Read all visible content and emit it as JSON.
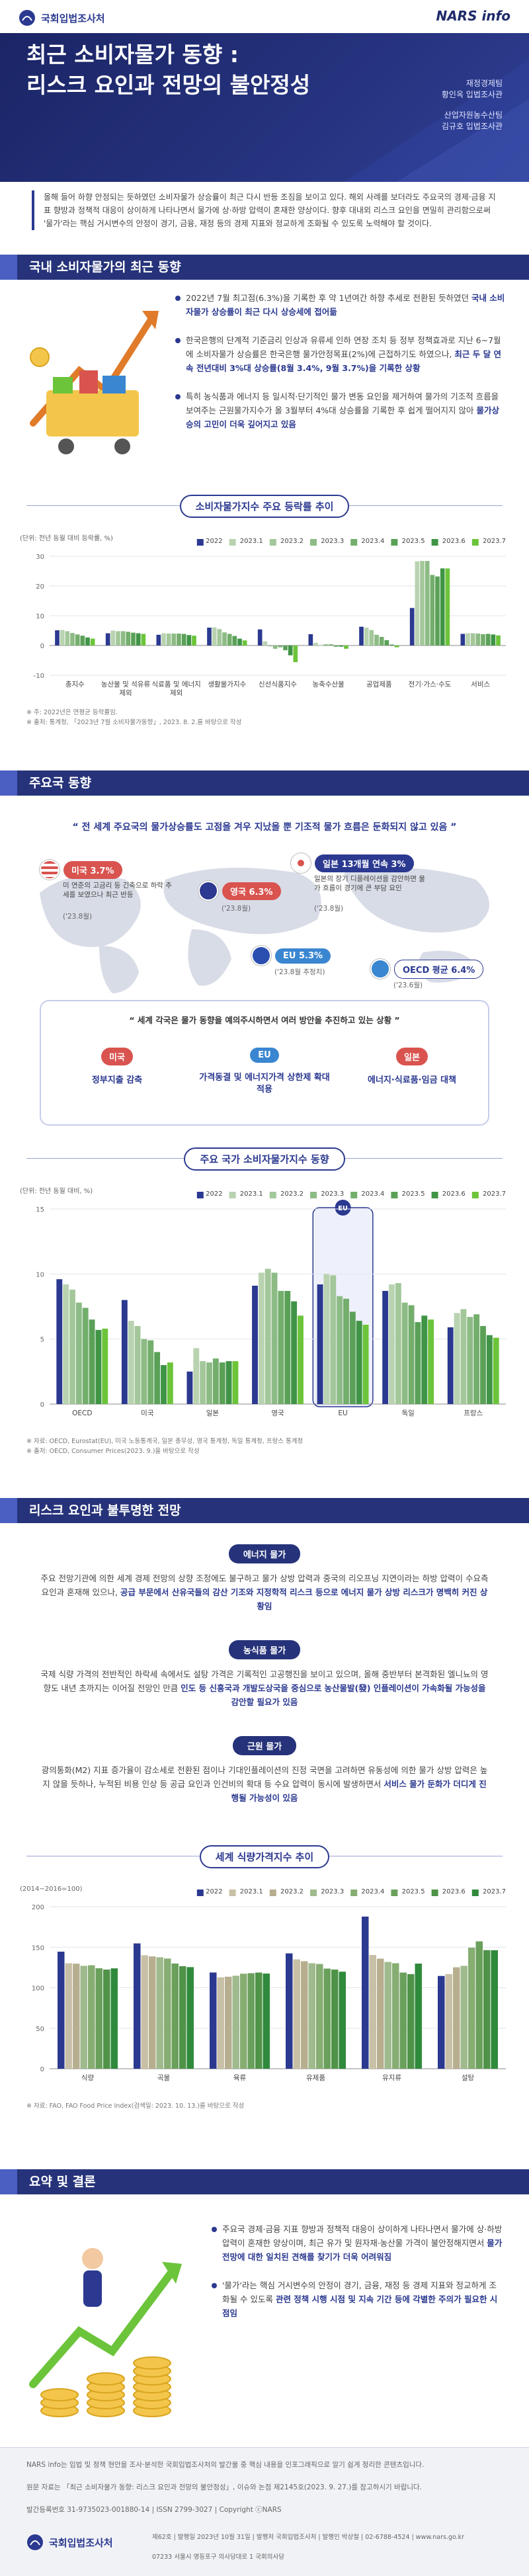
{
  "header": {
    "logo": "국회입법조사처",
    "brand": "NARS info",
    "title": [
      "최근 소비자물가 동향 :",
      "리스크 요인과 전망의 불안정성"
    ],
    "authors": [
      {
        "team": "재정경제팀",
        "name": "황인옥 입법조사관"
      },
      {
        "team": "산업자원농수산팀",
        "name": "김규호 입법조사관"
      }
    ]
  },
  "intro": "올해 들어 하향 안정되는 듯하였던 소비자물가 상승률이 최근 다시 반등 조짐을 보이고 있다. 해외 사례를 보더라도 주요국의 경제·금융 지표 향방과 정책적 대응이 상이하게 나타나면서 물가에 상·하방 압력이 혼재한 양상이다. 향후 대내외 리스크 요인을 면밀히 관리함으로써 '물가'라는 핵심 거시변수의 안정이 경기, 금융, 재정 등의 경제 지표와 정교하게 조화될 수 있도록 노력해야 할 것이다.",
  "section1": {
    "title": "국내 소비자물가의 최근 동향",
    "bullets": [
      {
        "text": "2022년 7월 최고점(6.3%)을 기록한 후 약 1년여간 하향 추세로 전환된 듯하였던",
        "highlight": "국내 소비자물가 상승률이 최근 다시 상승세에 접어듦"
      },
      {
        "text": "한국은행의 단계적 기준금리 인상과 유류세 인하 연장 조치 등 정부 정책효과로 지난 6~7월에 소비자물가 상승률은 한국은행 물가안정목표(2%)에 근접하기도 하였으나,",
        "highlight": "최근 두 달 연속 전년대비 3%대 상승률(8월 3.4%, 9월 3.7%)을 기록한 상황"
      },
      {
        "text": "특히 농식품과 에너지 등 일시적·단기적인 물가 변동 요인을 제거하여 물가의 기조적 흐름을 보여주는 근원물가지수가 올 3월부터 4%대 상승률을 기록한 후 쉽게 떨어지지 않아",
        "highlight": "물가상승의 고민이 더욱 깊어지고 있음"
      }
    ]
  },
  "section2": {
    "title": "주요국 동향",
    "quote": "전 세계 주요국의 물가상승률도 고점을 겨우 지났을 뿐 기조적 물가 흐름은 둔화되지 않고 있음",
    "map": [
      {
        "label": "영국 6.3%",
        "date": "('23.8월)"
      },
      {
        "label": "일본 13개월 연속 3%",
        "desc": "일본의 장기 디플레이션을 감안하면 물가 흐름이 경기에 큰 부담 요인",
        "date": "('23.8월)"
      },
      {
        "label": "미국 3.7%",
        "desc": "미 연준의 고금리 등 긴축으로 하락 추세를 보였으나 최근 반등",
        "date": "('23.8월)"
      },
      {
        "label": "EU 5.3%",
        "date": "('23.8월 추정치)"
      },
      {
        "label": "OECD 평균 6.4%",
        "date": "('23.6월)"
      }
    ],
    "measures": {
      "heading": "세계 각국은 물가 동향을 예의주시하면서 여러 방안을 추진하고 있는 상황",
      "items": [
        {
          "country": "미국",
          "action": "정부지출 감축"
        },
        {
          "country": "EU",
          "action": "가격동결 및 에너지가격 상한제 확대 적용"
        },
        {
          "country": "일본",
          "action": "에너지·식료품·임금 대책"
        }
      ]
    }
  },
  "section3": {
    "title": "리스크 요인과 불투명한 전망",
    "items": [
      {
        "label": "에너지 물가",
        "text": "주요 전망기관에 의한 세계 경제 전망의 상향 조정에도 불구하고 물가 상방 압력과 중국의 리오프닝 지연이라는 하방 압력이 수요측 요인과 혼재해 있으나,",
        "highlight": "공급 부문에서 산유국들의 감산 기조와 지정학적 리스크 등으로 에너지 물가 상방 리스크가 명백히 커진 상황임"
      },
      {
        "label": "농식품 물가",
        "text": "국제 식량 가격의 전반적인 하락세 속에서도 설탕 가격은 기록적인 고공행진을 보이고 있으며, 올해 중반부터 본격화된 엘니뇨의 영향도 내년 초까지는 이어질 전망인 만큼",
        "highlight": "인도 등 신흥국과 개발도상국을 중심으로 농산물발(發) 인플레이션이 가속화될 가능성을 감안할 필요가 있음"
      },
      {
        "label": "근원 물가",
        "text": "광의통화(M2) 지표 증가율이 감소세로 전환된 점이나 기대인플레이션의 진정 국면을 고려하면 유동성에 의한 물가 상방 압력은 높지 않을 듯하나, 누적된 비용 인상 등 공급 요인과 인건비의 확대 등 수요 압력이 동시에 발생하면서",
        "highlight": "서비스 물가 둔화가 더디게 진행될 가능성이 있음"
      }
    ]
  },
  "section4": {
    "title": "요약 및 결론",
    "bullets": [
      {
        "text": "주요국 경제·금융 지표 향방과 정책적 대응이 상이하게 나타나면서 물가에 상·하방 압력이 혼재한 양상이며, 최근 유가 및 원자재·농산물 가격이 불안정해지면서",
        "highlight": "물가 전망에 대한 일치된 견해를 찾기가 더욱 어려워짐"
      },
      {
        "text": "'물가'라는 핵심 거시변수의 안정이 경기, 금융, 재정 등 경제 지표와 정교하게 조화될 수 있도록",
        "highlight": "관련 정책 시행 시점 및 지속 기간 등에 각별한 주의가 필요한 시점임"
      }
    ]
  },
  "footer": {
    "disclaimer": "NARS info는 입법 및 정책 현안을 조사·분석한 국회입법조사처의 발간물 중 핵심 내용을 인포그래픽으로 알기 쉽게 정리한 콘텐츠입니다.",
    "source": "원문 자료는 「최근 소비자물가 동향: 리스크 요인과 전망의 불안정성」, 이슈와 논점 제2145호(2023. 9. 27.)를 참고하시기 바랍니다.",
    "registration": "발간등록번호 31-9735023-001880-14 | ISSN 2799-3027 | Copyright ⓒNARS",
    "logo": "국회입법조사처",
    "issue": "제62호 | 발행일 2023년 10월 31일 | 발행처 국회입법조사처 | 발행인 박상철 | 02-6788-4524 | www.nars.go.kr",
    "address": "07233 서울시 영등포구 의사당대로 1 국회의사당"
  },
  "chart_data": [
    {
      "type": "bar",
      "title": "소비자물가지수 주요 등락률 추이",
      "y_label": "(단위: 전년 동월 대비 등락률, %)",
      "categories": [
        "총지수",
        "농산물 및 석유류제외",
        "식료품 및 에너지제외",
        "생활물가지수",
        "신선식품지수",
        "농축수산물",
        "공업제품",
        "전기·가스·수도",
        "서비스"
      ],
      "series": [
        {
          "name": "2022",
          "color": "#2b3990",
          "values": [
            5.1,
            4.1,
            3.6,
            6.0,
            5.4,
            3.8,
            6.3,
            12.6,
            3.9
          ]
        },
        {
          "name": "2023.1",
          "color": "#b9d3b0",
          "values": [
            5.2,
            5.0,
            4.1,
            6.1,
            1.4,
            0.9,
            6.0,
            28.3,
            4.1
          ]
        },
        {
          "name": "2023.2",
          "color": "#a3c79a",
          "values": [
            4.8,
            4.8,
            4.0,
            5.5,
            -0.3,
            -0.1,
            5.2,
            28.4,
            4.1
          ]
        },
        {
          "name": "2023.3",
          "color": "#8dbb85",
          "values": [
            4.2,
            4.8,
            4.0,
            4.4,
            -1.1,
            0.4,
            3.6,
            28.4,
            4.0
          ]
        },
        {
          "name": "2023.4",
          "color": "#73ae6c",
          "values": [
            3.7,
            4.6,
            4.0,
            3.9,
            -0.6,
            0.4,
            2.9,
            23.7,
            3.8
          ]
        },
        {
          "name": "2023.5",
          "color": "#5aa157",
          "values": [
            3.3,
            4.3,
            3.9,
            3.2,
            -1.6,
            -0.4,
            1.8,
            23.2,
            3.9
          ]
        },
        {
          "name": "2023.6",
          "color": "#3f9446",
          "values": [
            2.7,
            4.1,
            3.5,
            2.3,
            -3.3,
            -0.4,
            0.3,
            25.9,
            3.7
          ]
        },
        {
          "name": "2023.7",
          "color": "#6cc43a",
          "values": [
            2.3,
            3.9,
            3.3,
            1.7,
            -5.6,
            -1.1,
            -0.6,
            25.9,
            3.4
          ]
        }
      ],
      "ylim": [
        -10,
        30
      ],
      "yticks": [
        -10,
        0,
        10,
        20,
        30
      ],
      "grid": true,
      "notes": [
        "※ 주: 2022년은 연평균 등락률임.",
        "※ 출처: 통계청, 「2023년 7월 소비자물가동향」, 2023. 8. 2.를 바탕으로 작성"
      ]
    },
    {
      "type": "bar",
      "title": "주요 국가 소비자물가지수 동향",
      "y_label": "(단위: 전년 동월 대비, %)",
      "categories": [
        "OECD",
        "미국",
        "일본",
        "영국",
        "EU",
        "독일",
        "프랑스"
      ],
      "highlight": "EU",
      "series": [
        {
          "name": "2022",
          "color": "#2b3990",
          "values": [
            9.6,
            8.0,
            2.5,
            9.1,
            9.2,
            8.7,
            5.9
          ]
        },
        {
          "name": "2023.1",
          "color": "#b9d3b0",
          "values": [
            9.2,
            6.4,
            4.3,
            10.1,
            10.0,
            9.2,
            7.0
          ]
        },
        {
          "name": "2023.2",
          "color": "#a3c79a",
          "values": [
            8.8,
            6.0,
            3.3,
            10.4,
            9.9,
            9.3,
            7.3
          ]
        },
        {
          "name": "2023.3",
          "color": "#8dbb85",
          "values": [
            7.8,
            5.0,
            3.2,
            10.1,
            8.3,
            7.8,
            6.7
          ]
        },
        {
          "name": "2023.4",
          "color": "#73ae6c",
          "values": [
            7.4,
            4.9,
            3.5,
            8.7,
            8.1,
            7.6,
            6.9
          ]
        },
        {
          "name": "2023.5",
          "color": "#5aa157",
          "values": [
            6.5,
            4.0,
            3.2,
            8.7,
            7.1,
            6.3,
            6.0
          ]
        },
        {
          "name": "2023.6",
          "color": "#3f9446",
          "values": [
            5.7,
            3.0,
            3.3,
            7.9,
            6.4,
            6.8,
            5.3
          ]
        },
        {
          "name": "2023.7",
          "color": "#6cc43a",
          "values": [
            5.8,
            3.2,
            3.3,
            6.8,
            6.1,
            6.5,
            5.1
          ]
        }
      ],
      "ylim": [
        0,
        15
      ],
      "yticks": [
        0,
        5,
        10,
        15
      ],
      "grid": true,
      "notes": [
        "※ 자료: OECD, Eurostat(EU), 미국 노동통계국, 일본 총무성, 영국 통계청, 독일 통계청, 프랑스 통계청",
        "※ 출처: OECD, Consumer Prices(2023. 9.)을 바탕으로 작성"
      ]
    },
    {
      "type": "bar",
      "title": "세계 식량가격지수 추이",
      "y_label": "(2014~2016=100)",
      "categories": [
        "식량",
        "곡물",
        "육류",
        "유제품",
        "유지류",
        "설탕"
      ],
      "series": [
        {
          "name": "2022",
          "color": "#2b3990",
          "values": [
            144.5,
            154.7,
            118.8,
            142.4,
            187.8,
            114.5
          ]
        },
        {
          "name": "2023.1",
          "color": "#c8c0a6",
          "values": [
            130.2,
            140.1,
            112.8,
            135.0,
            140.4,
            116.8
          ]
        },
        {
          "name": "2023.2",
          "color": "#b7ae8f",
          "values": [
            129.7,
            138.6,
            113.6,
            132.7,
            135.9,
            125.2
          ]
        },
        {
          "name": "2023.3",
          "color": "#9fba8c",
          "values": [
            127.0,
            137.6,
            114.8,
            130.2,
            131.8,
            127.0
          ]
        },
        {
          "name": "2023.4",
          "color": "#86ad72",
          "values": [
            127.7,
            136.0,
            117.3,
            129.3,
            130.2,
            149.4
          ]
        },
        {
          "name": "2023.5",
          "color": "#6aa05c",
          "values": [
            124.0,
            129.9,
            117.9,
            123.6,
            118.7,
            157.2
          ]
        },
        {
          "name": "2023.6",
          "color": "#4f9349",
          "values": [
            122.4,
            126.6,
            118.7,
            122.4,
            116.8,
            146.4
          ]
        },
        {
          "name": "2023.7",
          "color": "#2f8a3c",
          "values": [
            123.9,
            125.4,
            117.5,
            119.8,
            129.8,
            146.3
          ]
        }
      ],
      "ylim": [
        0,
        200
      ],
      "yticks": [
        0,
        50,
        100,
        150,
        200
      ],
      "grid": true,
      "notes": [
        "※ 자료: FAO, FAO Food Price Index(검색일: 2023. 10. 13.)를 바탕으로 작성"
      ]
    }
  ]
}
